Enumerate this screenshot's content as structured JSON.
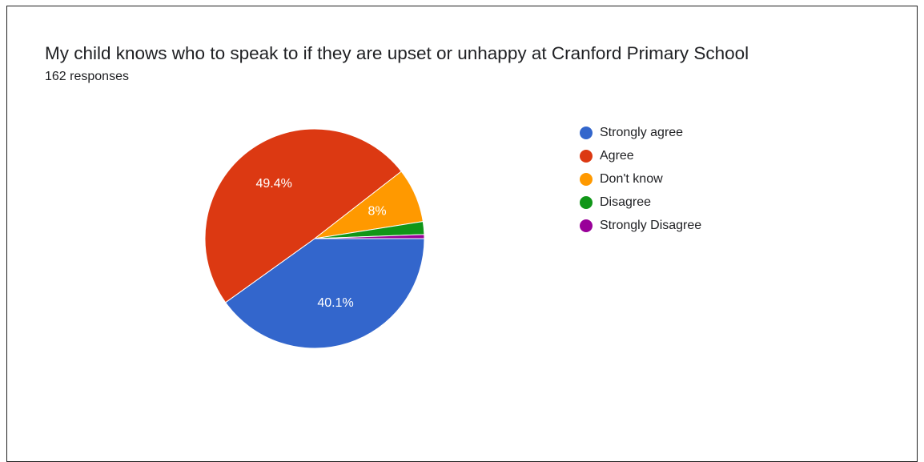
{
  "chart_data": {
    "type": "pie",
    "title": "My child knows who to speak to if they are upset or unhappy at Cranford Primary School",
    "subtitle": "162 responses",
    "legend_position": "right",
    "slices": [
      {
        "label": "Strongly agree",
        "percent": 40.1,
        "display": "40.1%",
        "color": "#3366cc"
      },
      {
        "label": "Agree",
        "percent": 49.4,
        "display": "49.4%",
        "color": "#dc3912"
      },
      {
        "label": "Don't know",
        "percent": 8.0,
        "display": "8%",
        "color": "#ff9900"
      },
      {
        "label": "Disagree",
        "percent": 1.9,
        "display": "",
        "color": "#109618"
      },
      {
        "label": "Strongly Disagree",
        "percent": 0.6,
        "display": "",
        "color": "#990099"
      }
    ]
  }
}
